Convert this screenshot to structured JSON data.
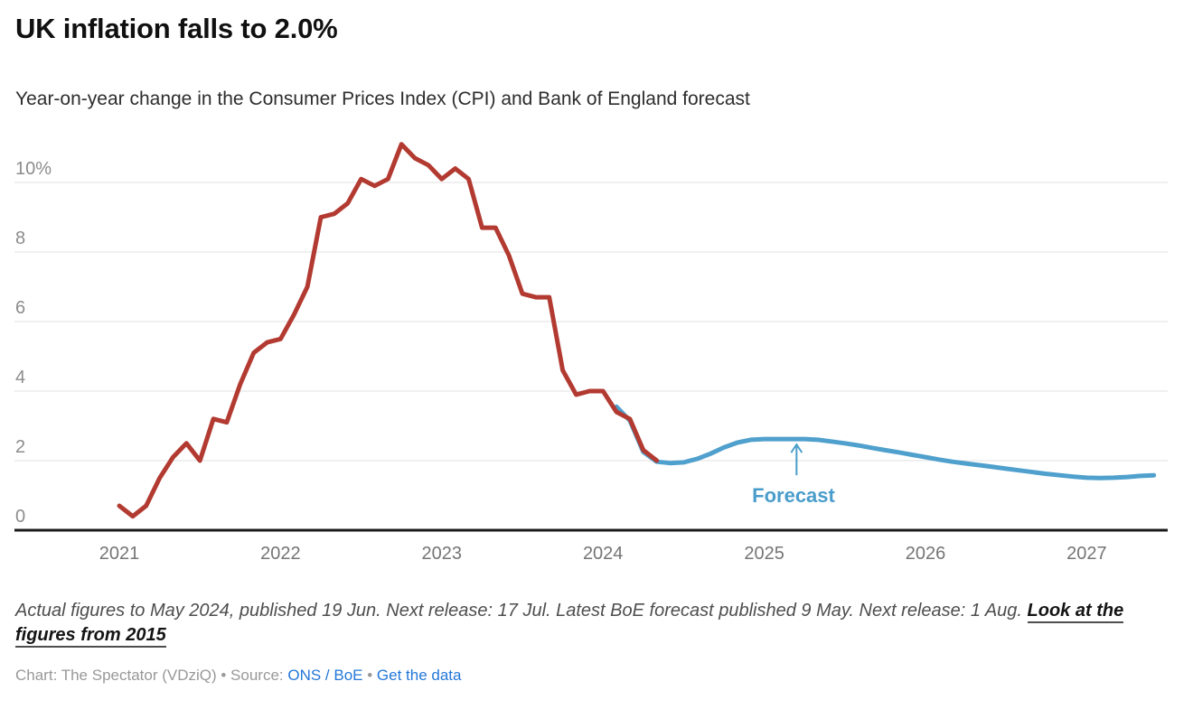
{
  "chart_data": {
    "type": "line",
    "title": "UK inflation falls to 2.0%",
    "subtitle": "Year-on-year change in the Consumer Prices Index (CPI) and Bank of England forecast",
    "x_axis": {
      "start": "2021-01",
      "end": "2027-06",
      "tick_years": [
        "2021",
        "2022",
        "2023",
        "2024",
        "2025",
        "2026",
        "2027"
      ]
    },
    "y_axis": {
      "min": 0,
      "max": 11.5,
      "grid": true,
      "ticks": [
        {
          "v": 0,
          "label": "0"
        },
        {
          "v": 2,
          "label": "2"
        },
        {
          "v": 4,
          "label": "4"
        },
        {
          "v": 6,
          "label": "6"
        },
        {
          "v": 8,
          "label": "8"
        },
        {
          "v": 10,
          "label": "10%"
        }
      ]
    },
    "series": [
      {
        "id": "boe-forecast",
        "name": "Bank of England forecast",
        "color": "#4fa0cd",
        "start": "2024-02",
        "values": [
          3.55,
          3.15,
          2.25,
          1.97,
          1.93,
          1.95,
          2.05,
          2.2,
          2.38,
          2.52,
          2.6,
          2.62,
          2.62,
          2.62,
          2.62,
          2.6,
          2.55,
          2.5,
          2.44,
          2.37,
          2.3,
          2.24,
          2.17,
          2.1,
          2.03,
          1.97,
          1.92,
          1.87,
          1.82,
          1.77,
          1.72,
          1.67,
          1.62,
          1.58,
          1.54,
          1.51,
          1.5,
          1.51,
          1.53,
          1.56,
          1.58
        ]
      },
      {
        "id": "cpi-actual",
        "name": "CPI year-on-year change",
        "color": "#b23a31",
        "start": "2021-01",
        "values": [
          0.7,
          0.4,
          0.7,
          1.5,
          2.1,
          2.5,
          2.0,
          3.2,
          3.1,
          4.2,
          5.1,
          5.4,
          5.5,
          6.2,
          7.0,
          9.0,
          9.1,
          9.4,
          10.1,
          9.9,
          10.1,
          11.1,
          10.7,
          10.5,
          10.1,
          10.4,
          10.1,
          8.7,
          8.7,
          7.9,
          6.8,
          6.7,
          6.7,
          4.6,
          3.9,
          4.0,
          4.0,
          3.4,
          3.2,
          2.3,
          2.0
        ]
      }
    ],
    "annotation": {
      "label": "Forecast",
      "color": "#4a9dcb",
      "anchor": "2025-03"
    },
    "legend_position": "none"
  },
  "footer": {
    "notes_text": "Actual figures to May 2024, published 19 Jun. Next release: 17 Jul. Latest BoE forecast published 9 May. Next release: 1 Aug. ",
    "notes_link_text": "Look at the figures from 2015",
    "attribution": {
      "prefix": "Chart: The Spectator (VDziQ) • Source: ",
      "source_link": "ONS / BoE",
      "separator": " • ",
      "data_link": "Get the data"
    }
  },
  "colors": {
    "actual_line": "#b23a31",
    "forecast_line": "#4fa0cd",
    "annotation_text": "#4a9dcb",
    "gridline": "#e2e2e2",
    "baseline": "#1a1a1a",
    "y_label": "#8c8c8c",
    "x_label": "#757575",
    "link_blue": "#2377d7"
  }
}
